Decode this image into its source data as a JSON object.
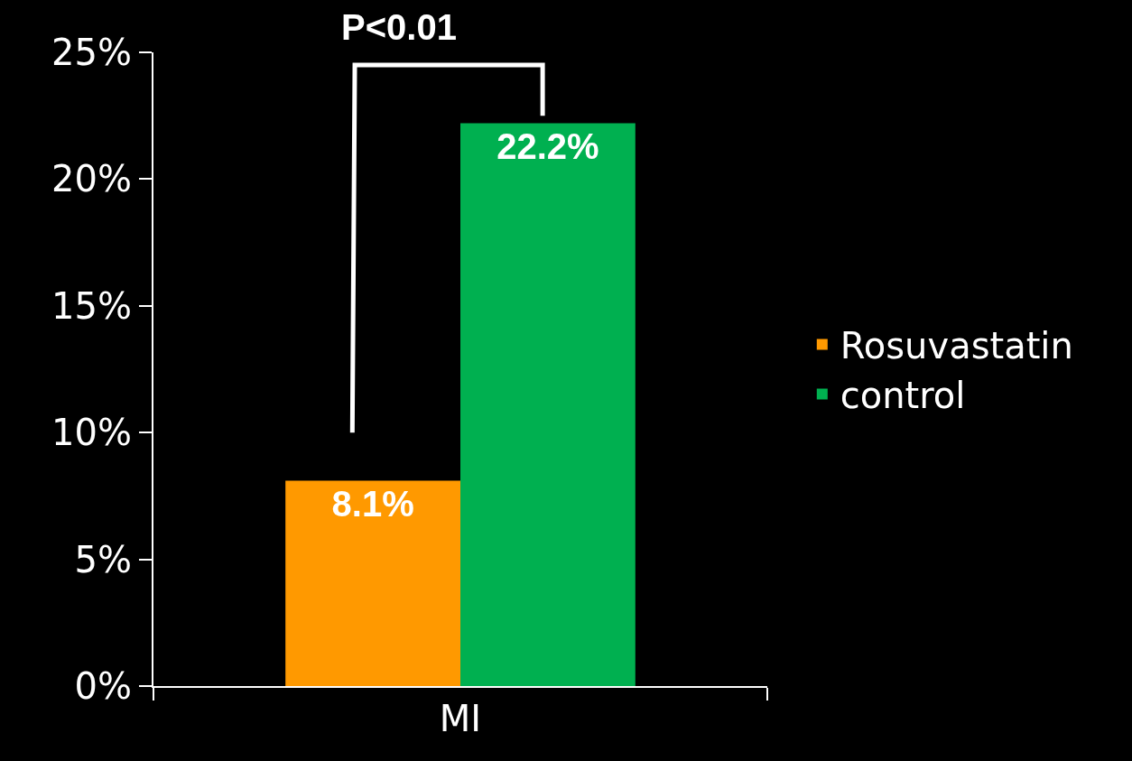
{
  "chart_data": {
    "type": "bar",
    "categories": [
      "MI"
    ],
    "series": [
      {
        "name": "Rosuvastatin",
        "color": "#ff9900",
        "values": [
          8.1
        ],
        "value_labels": [
          "8.1%"
        ]
      },
      {
        "name": "control",
        "color": "#00b050",
        "values": [
          22.2
        ],
        "value_labels": [
          "22.2%"
        ]
      }
    ],
    "ylim": [
      0,
      25
    ],
    "yticks": [
      {
        "value": 0,
        "label": "0%"
      },
      {
        "value": 5,
        "label": "5%"
      },
      {
        "value": 10,
        "label": "10%"
      },
      {
        "value": 15,
        "label": "15%"
      },
      {
        "value": 20,
        "label": "20%"
      },
      {
        "value": 25,
        "label": "25%"
      }
    ],
    "grid": false,
    "legend": "right",
    "annotations": [
      "P<0.01"
    ]
  }
}
